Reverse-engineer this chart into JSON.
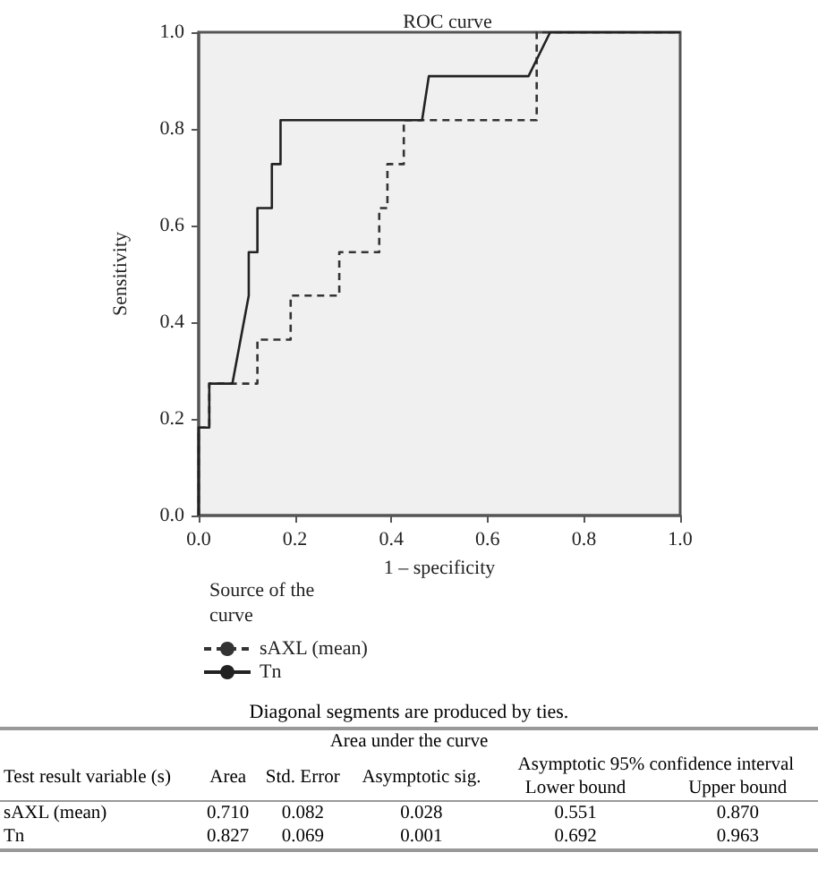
{
  "chart_data": {
    "type": "line",
    "title": "ROC curve",
    "xlabel": "1 – specificity",
    "ylabel": "Sensitivity",
    "legend_title": "Source of the curve",
    "legend": "bottom",
    "grid": false,
    "marker": "none",
    "xlim": [
      0,
      1
    ],
    "ylim": [
      0,
      1
    ],
    "xticks": [
      {
        "value": 0,
        "label": "0.0"
      },
      {
        "value": 0.2,
        "label": "0.2"
      },
      {
        "value": 0.4,
        "label": "0.4"
      },
      {
        "value": 0.6,
        "label": "0.6"
      },
      {
        "value": 0.8,
        "label": "0.8"
      },
      {
        "value": 1,
        "label": "1.0"
      }
    ],
    "yticks": [
      {
        "value": 0,
        "label": "0.0"
      },
      {
        "value": 0.2,
        "label": "0.2"
      },
      {
        "value": 0.4,
        "label": "0.4"
      },
      {
        "value": 0.6,
        "label": "0.6"
      },
      {
        "value": 0.8,
        "label": "0.8"
      },
      {
        "value": 1,
        "label": "1.0"
      }
    ],
    "series": [
      {
        "name": "sAXL (mean)",
        "color": "#333333",
        "line_style": "dashed",
        "x": [
          0,
          0,
          0.022,
          0.022,
          0.122,
          0.122,
          0.191,
          0.191,
          0.292,
          0.292,
          0.375,
          0.375,
          0.392,
          0.392,
          0.426,
          0.426,
          0.702,
          0.702,
          1
        ],
        "values": [
          0,
          0.182,
          0.182,
          0.273,
          0.273,
          0.364,
          0.364,
          0.455,
          0.455,
          0.545,
          0.545,
          0.636,
          0.636,
          0.727,
          0.727,
          0.818,
          0.818,
          1,
          1
        ]
      },
      {
        "name": "Tn",
        "color": "#222222",
        "line_style": "solid",
        "x": [
          0,
          0,
          0.022,
          0.022,
          0.07,
          0.104,
          0.104,
          0.122,
          0.122,
          0.152,
          0.152,
          0.17,
          0.17,
          0.464,
          0.478,
          0.685,
          0.73,
          1
        ],
        "values": [
          0,
          0.182,
          0.182,
          0.273,
          0.273,
          0.455,
          0.545,
          0.545,
          0.636,
          0.636,
          0.727,
          0.727,
          0.818,
          0.818,
          0.909,
          0.909,
          1,
          1
        ]
      }
    ],
    "annotations": [
      "Diagonal segments are produced by ties.",
      "Area under the curve",
      "Test result variable (s)",
      "Area",
      "Std. Error",
      "Asymptotic sig.",
      "Asymptotic 95% confidence interval",
      "Lower bound",
      "Upper bound",
      "sAXL (mean)",
      "0.710",
      "0.082",
      "0.028",
      "0.551",
      "0.870",
      "Tn",
      "0.827",
      "0.069",
      "0.001",
      "0.692",
      "0.963"
    ]
  }
}
